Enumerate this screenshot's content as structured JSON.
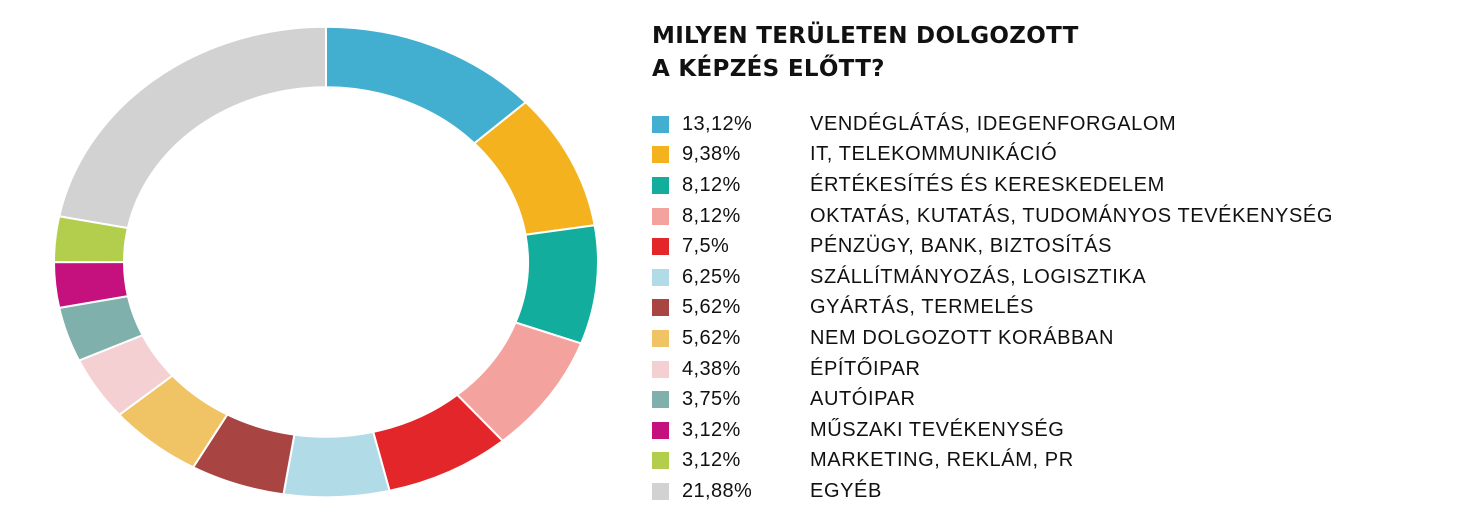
{
  "chart_data": {
    "type": "pie",
    "style": "donut",
    "title_lines": [
      "MILYEN TERÜLETEN DOLGOZOTT",
      "A KÉPZÉS ELŐTT?"
    ],
    "slices": [
      {
        "value": 13.12,
        "value_label": "13,12%",
        "label": "VENDÉGLÁTÁS, IDEGENFORGALOM",
        "color": "#42aed0"
      },
      {
        "value": 9.38,
        "value_label": "9,38%",
        "label": "IT, TELEKOMMUNIKÁCIÓ",
        "color": "#f3b21e"
      },
      {
        "value": 8.12,
        "value_label": "8,12%",
        "label": "ÉRTÉKESÍTÉS ÉS KERESKEDELEM",
        "color": "#12ad9c"
      },
      {
        "value": 8.12,
        "value_label": "8,12%",
        "label": "OKTATÁS, KUTATÁS, TUDOMÁNYOS TEVÉKENYSÉG",
        "color": "#f3a29e"
      },
      {
        "value": 7.5,
        "value_label": "7,5%",
        "label": "PÉNZÜGY, BANK, BIZTOSÍTÁS",
        "color": "#e3262a"
      },
      {
        "value": 6.25,
        "value_label": "6,25%",
        "label": "SZÁLLÍTMÁNYOZÁS, LOGISZTIKA",
        "color": "#b2dbe8"
      },
      {
        "value": 5.62,
        "value_label": "5,62%",
        "label": "GYÁRTÁS, TERMELÉS",
        "color": "#a84442"
      },
      {
        "value": 5.62,
        "value_label": "5,62%",
        "label": "NEM DOLGOZOTT KORÁBBAN",
        "color": "#f0c464"
      },
      {
        "value": 4.38,
        "value_label": "4,38%",
        "label": "ÉPÍTŐIPAR",
        "color": "#f5d0d2"
      },
      {
        "value": 3.75,
        "value_label": "3,75%",
        "label": "AUTÓIPAR",
        "color": "#7fb0ac"
      },
      {
        "value": 3.12,
        "value_label": "3,12%",
        "label": "MŰSZAKI TEVÉKENYSÉG",
        "color": "#c4117e"
      },
      {
        "value": 3.12,
        "value_label": "3,12%",
        "label": "MARKETING, REKLÁM, PR",
        "color": "#b3ce4c"
      },
      {
        "value": 21.88,
        "value_label": "21,88%",
        "label": "EGYÉB",
        "color": "#d2d2d2"
      }
    ],
    "legend_position": "right"
  }
}
